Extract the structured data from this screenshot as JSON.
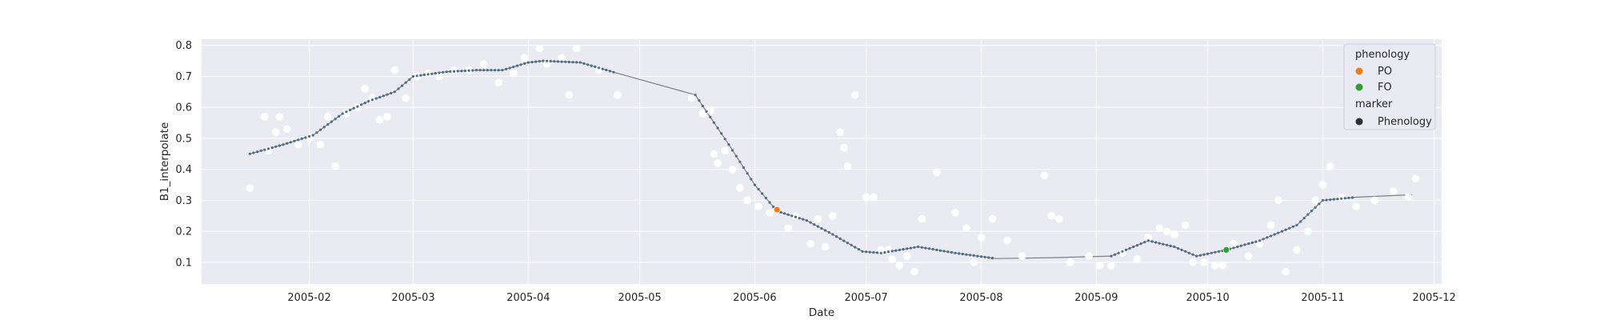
{
  "chart_data": {
    "type": "scatter",
    "xlabel": "Date",
    "ylabel": "B1_interpolate",
    "xlim": [
      "2005-01-03",
      "2005-12-03"
    ],
    "ylim": [
      0.03,
      0.82
    ],
    "x_ticks": [
      "2005-02",
      "2005-03",
      "2005-04",
      "2005-05",
      "2005-06",
      "2005-07",
      "2005-08",
      "2005-09",
      "2005-10",
      "2005-11",
      "2005-12"
    ],
    "y_ticks": [
      0.1,
      0.2,
      0.3,
      0.4,
      0.5,
      0.6,
      0.7,
      0.8
    ],
    "y_tick_labels": [
      "0.1",
      "0.2",
      "0.3",
      "0.4",
      "0.5",
      "0.6",
      "0.7",
      "0.8"
    ],
    "grid": true,
    "background_color": "#eaeaf2",
    "series": [
      {
        "role": "interpolated",
        "line_color": "#7f7f7f",
        "marker_color": "#4c6e8a",
        "x": [
          "2005-01-16",
          "2005-01-25",
          "2005-02-02",
          "2005-02-10",
          "2005-02-17",
          "2005-02-24",
          "2005-03-01",
          "2005-03-10",
          "2005-03-18",
          "2005-03-25",
          "2005-04-01",
          "2005-04-05",
          "2005-04-15",
          "2005-04-25",
          "2005-05-16",
          "2005-05-25",
          "2005-06-01",
          "2005-06-07",
          "2005-06-15",
          "2005-06-22",
          "2005-06-30",
          "2005-07-05",
          "2005-07-15",
          "2005-07-25",
          "2005-08-05",
          "2005-08-20",
          "2005-09-05",
          "2005-09-15",
          "2005-09-22",
          "2005-09-28",
          "2005-10-06",
          "2005-10-15",
          "2005-10-25",
          "2005-11-01",
          "2005-11-10",
          "2005-11-25"
        ],
        "y": [
          0.45,
          0.48,
          0.51,
          0.58,
          0.62,
          0.65,
          0.7,
          0.715,
          0.72,
          0.72,
          0.745,
          0.75,
          0.745,
          0.71,
          0.64,
          0.48,
          0.35,
          0.265,
          0.235,
          0.19,
          0.135,
          0.13,
          0.15,
          0.13,
          0.112,
          0.115,
          0.12,
          0.17,
          0.15,
          0.12,
          0.14,
          0.17,
          0.22,
          0.3,
          0.31,
          0.318
        ]
      },
      {
        "role": "observed",
        "color": "#ffffff",
        "x": [
          "2005-01-16",
          "2005-01-20",
          "2005-01-21",
          "2005-01-23",
          "2005-01-24",
          "2005-01-26",
          "2005-01-29",
          "2005-02-01",
          "2005-02-04",
          "2005-02-06",
          "2005-02-08",
          "2005-02-11",
          "2005-02-14",
          "2005-02-16",
          "2005-02-18",
          "2005-02-20",
          "2005-02-22",
          "2005-02-24",
          "2005-02-27",
          "2005-03-02",
          "2005-03-05",
          "2005-03-08",
          "2005-03-12",
          "2005-03-16",
          "2005-03-20",
          "2005-03-24",
          "2005-03-28",
          "2005-03-31",
          "2005-04-04",
          "2005-04-06",
          "2005-04-10",
          "2005-04-12",
          "2005-04-14",
          "2005-04-20",
          "2005-04-25",
          "2005-05-15",
          "2005-05-18",
          "2005-05-20",
          "2005-05-21",
          "2005-05-22",
          "2005-05-24",
          "2005-05-26",
          "2005-05-28",
          "2005-05-30",
          "2005-06-02",
          "2005-06-05",
          "2005-06-10",
          "2005-06-12",
          "2005-06-16",
          "2005-06-18",
          "2005-06-20",
          "2005-06-22",
          "2005-06-24",
          "2005-06-25",
          "2005-06-26",
          "2005-06-28",
          "2005-07-01",
          "2005-07-03",
          "2005-07-05",
          "2005-07-07",
          "2005-07-08",
          "2005-07-10",
          "2005-07-12",
          "2005-07-14",
          "2005-07-16",
          "2005-07-20",
          "2005-07-25",
          "2005-07-28",
          "2005-07-30",
          "2005-08-01",
          "2005-08-04",
          "2005-08-08",
          "2005-08-12",
          "2005-08-18",
          "2005-08-20",
          "2005-08-22",
          "2005-08-25",
          "2005-08-30",
          "2005-09-02",
          "2005-09-05",
          "2005-09-08",
          "2005-09-12",
          "2005-09-15",
          "2005-09-18",
          "2005-09-20",
          "2005-09-22",
          "2005-09-25",
          "2005-09-27",
          "2005-09-30",
          "2005-10-03",
          "2005-10-05",
          "2005-10-08",
          "2005-10-12",
          "2005-10-15",
          "2005-10-18",
          "2005-10-20",
          "2005-10-22",
          "2005-10-25",
          "2005-10-28",
          "2005-10-30",
          "2005-11-01",
          "2005-11-03",
          "2005-11-06",
          "2005-11-10",
          "2005-11-15",
          "2005-11-20",
          "2005-11-24",
          "2005-11-26"
        ],
        "y": [
          0.34,
          0.57,
          0.46,
          0.52,
          0.57,
          0.53,
          0.48,
          0.5,
          0.48,
          0.57,
          0.41,
          0.58,
          0.6,
          0.66,
          0.63,
          0.56,
          0.57,
          0.72,
          0.63,
          0.7,
          0.71,
          0.7,
          0.72,
          0.72,
          0.74,
          0.68,
          0.71,
          0.76,
          0.79,
          0.74,
          0.76,
          0.64,
          0.79,
          0.72,
          0.64,
          0.63,
          0.58,
          0.59,
          0.45,
          0.42,
          0.46,
          0.4,
          0.34,
          0.3,
          0.28,
          0.26,
          0.21,
          0.25,
          0.16,
          0.24,
          0.15,
          0.25,
          0.52,
          0.47,
          0.41,
          0.64,
          0.31,
          0.31,
          0.14,
          0.14,
          0.11,
          0.09,
          0.12,
          0.07,
          0.24,
          0.39,
          0.26,
          0.21,
          0.1,
          0.18,
          0.24,
          0.17,
          0.12,
          0.38,
          0.25,
          0.24,
          0.1,
          0.12,
          0.09,
          0.09,
          0.13,
          0.11,
          0.18,
          0.21,
          0.2,
          0.19,
          0.22,
          0.1,
          0.1,
          0.09,
          0.09,
          0.16,
          0.12,
          0.16,
          0.22,
          0.3,
          0.07,
          0.14,
          0.2,
          0.3,
          0.35,
          0.41,
          0.31,
          0.28,
          0.3,
          0.33,
          0.31,
          0.37
        ]
      },
      {
        "role": "PO",
        "name": "PO",
        "color": "#f07b1f",
        "x": [
          "2005-06-07"
        ],
        "y": [
          0.27
        ]
      },
      {
        "role": "FO",
        "name": "FO",
        "color": "#2ca02c",
        "x": [
          "2005-10-06"
        ],
        "y": [
          0.14
        ]
      }
    ],
    "legend": {
      "placement": "top-right",
      "hue_title": "phenology",
      "marker_title": "marker",
      "items": [
        {
          "label": "PO",
          "color": "#f07b1f"
        },
        {
          "label": "FO",
          "color": "#2ca02c"
        }
      ],
      "marker_item": {
        "label": "Phenology",
        "color": "#2f2f2f"
      }
    }
  }
}
